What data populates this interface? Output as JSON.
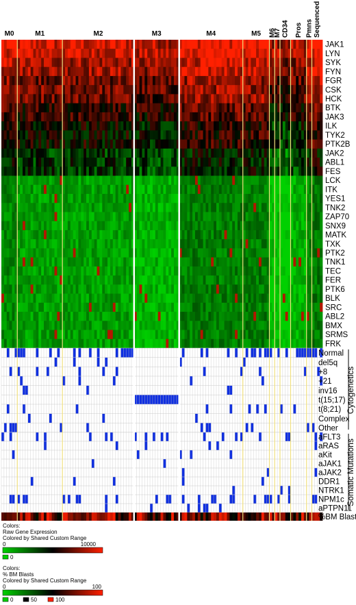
{
  "groups": [
    {
      "label": "M0",
      "n": 6
    },
    {
      "label": "M1",
      "n": 17
    },
    {
      "label": "M2",
      "n": 27
    },
    {
      "label": "M3",
      "n": 17
    },
    {
      "label": "M4",
      "n": 24
    },
    {
      "label": "M5",
      "n": 10
    },
    {
      "label": "M6",
      "n": 2
    },
    {
      "label": "M7",
      "n": 2
    },
    {
      "label": "CD34",
      "n": 4
    },
    {
      "label": "Pros",
      "n": 6
    },
    {
      "label": "Pmns",
      "n": 2
    },
    {
      "label": "Sequenced",
      "n": 4
    }
  ],
  "genes": [
    "JAK1",
    "LYN",
    "SYK",
    "FYN",
    "FGR",
    "CSK",
    "HCK",
    "BTK",
    "JAK3",
    "ILK",
    "TYK2",
    "PTK2B",
    "JAK2",
    "ABL1",
    "FES",
    "LCK",
    "ITK",
    "YES1",
    "TNK2",
    "ZAP70",
    "SNX9",
    "MATK",
    "TXK",
    "PTK2",
    "TNK1",
    "TEC",
    "FER",
    "PTK6",
    "BLK",
    "SRC",
    "ABL2",
    "BMX",
    "SRMS",
    "FRK"
  ],
  "cytogenetics": {
    "title": "Cytogenetics",
    "rows": [
      "Normal",
      "del5q",
      "+8",
      "+21",
      "inv16",
      "t(15;17)",
      "t(8;21)",
      "Complex",
      "Other"
    ]
  },
  "mutations": {
    "title": "Somatic Mutations",
    "rows": [
      "aFLT3",
      "aRAS",
      "aKit",
      "aJAK1",
      "aJAK2",
      "DDR1",
      "NTRK1",
      "NPM1c",
      "aPTPN11"
    ]
  },
  "blast_row": "%BM Blasts",
  "legend1": {
    "title_lines": [
      "Colors:",
      "Raw Gene Expression",
      "Colored by Shared Custom Range"
    ],
    "min": "0",
    "max": "10000",
    "key_label": "0"
  },
  "legend2": {
    "title_lines": [
      "Colors:",
      "% BM Blasts",
      "Colored by Shared Custom Range"
    ],
    "min": "0",
    "max": "100",
    "keys": [
      "0",
      "50",
      "100"
    ]
  },
  "colors": {
    "low": "#00d000",
    "mid": "#000000",
    "high": "#ff2000",
    "event": "#1030e0",
    "grid": "#c8c8c8",
    "separator": "#f0e080"
  }
}
